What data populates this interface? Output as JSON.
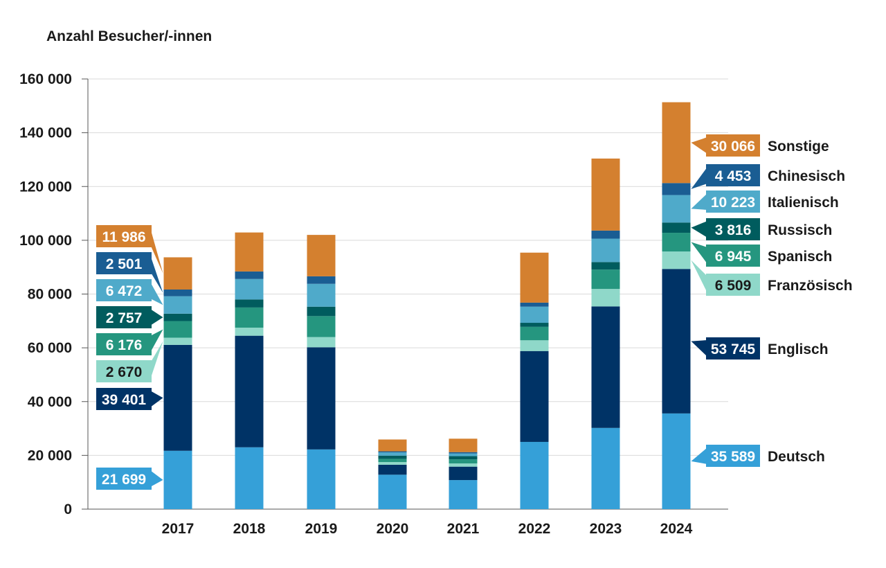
{
  "chart_data": {
    "type": "bar",
    "stacked": true,
    "ylabel": "Anzahl Besucher/-innen",
    "xlabel": "",
    "ylim": [
      0,
      160000
    ],
    "y_ticks": [
      0,
      20000,
      40000,
      60000,
      80000,
      100000,
      120000,
      140000,
      160000
    ],
    "y_tick_labels": [
      "0",
      "20 000",
      "40 000",
      "60 000",
      "80 000",
      "100 000",
      "120 000",
      "140 000",
      "160 000"
    ],
    "grid": true,
    "categories": [
      "2017",
      "2018",
      "2019",
      "2020",
      "2021",
      "2022",
      "2023",
      "2024"
    ],
    "series": [
      {
        "name": "Deutsch",
        "color": "#35a0d8",
        "values": [
          21699,
          23000,
          22200,
          12800,
          10800,
          25000,
          30200,
          35589
        ]
      },
      {
        "name": "Englisch",
        "color": "#003366",
        "values": [
          39401,
          41500,
          38000,
          3700,
          5000,
          33800,
          45200,
          53745
        ]
      },
      {
        "name": "Französisch",
        "color": "#8fd8c9",
        "values": [
          2670,
          3000,
          3800,
          1000,
          1200,
          4000,
          6500,
          6509
        ]
      },
      {
        "name": "Spanisch",
        "color": "#25967f",
        "values": [
          6176,
          7500,
          7800,
          1200,
          1500,
          5000,
          7200,
          6945
        ]
      },
      {
        "name": "Russisch",
        "color": "#005c5e",
        "values": [
          2757,
          3000,
          3500,
          1200,
          1200,
          1500,
          2800,
          3816
        ]
      },
      {
        "name": "Italienisch",
        "color": "#4faaca",
        "values": [
          6472,
          7600,
          8500,
          1200,
          1000,
          6000,
          8700,
          10223
        ]
      },
      {
        "name": "Chinesisch",
        "color": "#1a5d93",
        "values": [
          2501,
          2800,
          2800,
          400,
          500,
          1500,
          3000,
          4453
        ]
      },
      {
        "name": "Sonstige",
        "color": "#d4802f",
        "values": [
          11986,
          14500,
          15400,
          4400,
          5000,
          18600,
          26800,
          30066
        ]
      }
    ],
    "left_labels_2017": [
      {
        "series": "Sonstige",
        "text": "11 986",
        "text_color": "#ffffff"
      },
      {
        "series": "Chinesisch",
        "text": "2 501",
        "text_color": "#ffffff"
      },
      {
        "series": "Italienisch",
        "text": "6 472",
        "text_color": "#ffffff"
      },
      {
        "series": "Russisch",
        "text": "2 757",
        "text_color": "#ffffff"
      },
      {
        "series": "Spanisch",
        "text": "6 176",
        "text_color": "#ffffff"
      },
      {
        "series": "Französisch",
        "text": "2 670",
        "text_color": "#1a1a1a"
      },
      {
        "series": "Englisch",
        "text": "39 401",
        "text_color": "#ffffff"
      },
      {
        "series": "Deutsch",
        "text": "21 699",
        "text_color": "#ffffff"
      }
    ],
    "right_labels_2024": [
      {
        "series": "Sonstige",
        "text": "30 066",
        "name": "Sonstige",
        "text_color": "#ffffff"
      },
      {
        "series": "Chinesisch",
        "text": "4 453",
        "name": "Chinesisch",
        "text_color": "#ffffff"
      },
      {
        "series": "Italienisch",
        "text": "10 223",
        "name": "Italienisch",
        "text_color": "#ffffff"
      },
      {
        "series": "Russisch",
        "text": "3 816",
        "name": "Russisch",
        "text_color": "#ffffff"
      },
      {
        "series": "Spanisch",
        "text": "6 945",
        "name": "Spanisch",
        "text_color": "#ffffff"
      },
      {
        "series": "Französisch",
        "text": "6 509",
        "name": "Französisch",
        "text_color": "#1a1a1a"
      },
      {
        "series": "Englisch",
        "text": "53 745",
        "name": "Englisch",
        "text_color": "#ffffff"
      },
      {
        "series": "Deutsch",
        "text": "35 589",
        "name": "Deutsch",
        "text_color": "#ffffff"
      }
    ]
  }
}
